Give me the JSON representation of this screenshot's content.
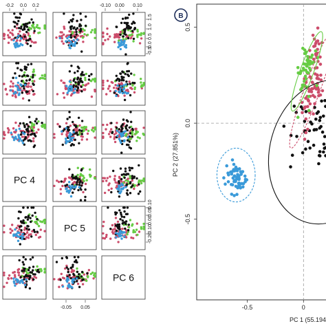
{
  "colors": {
    "black": "#111111",
    "red": "#cc4d6b",
    "green": "#66cc44",
    "blue": "#3a9ad9"
  },
  "chart_data": [
    {
      "type": "scatter",
      "kind": "pairs-matrix",
      "diagonal_labels": [
        "PC 4",
        "PC 5",
        "PC 6"
      ],
      "top_ticks": {
        "col1": [
          "-0.2",
          "0.0",
          "0.2"
        ],
        "col3": [
          "-0.10",
          "0.00",
          "0.10"
        ]
      },
      "right_ticks": {
        "row1": [
          "1.5",
          "1.0",
          "0.5",
          "0.0",
          "-0.5"
        ],
        "row5": [
          "0.10",
          "0.05",
          "0.00",
          "-0.10",
          "-0.20"
        ]
      },
      "bottom_ticks": {
        "col2": [
          "-0.05",
          "0.05"
        ]
      },
      "groups": [
        "black",
        "red",
        "green",
        "blue"
      ]
    },
    {
      "type": "scatter",
      "panel_label": "B",
      "xlabel": "PC 1 (55.194",
      "ylabel": "PC 2 (27.851%)",
      "xticks": [
        "-0.5",
        "0"
      ],
      "yticks": [
        "0.5",
        "0.0",
        "-0.5"
      ],
      "xlim": [
        -0.95,
        0.2
      ],
      "ylim": [
        -0.92,
        0.62
      ],
      "series": [
        {
          "group": "black",
          "n": 70,
          "center": [
            0.15,
            -0.05
          ],
          "spread": [
            0.22,
            0.18
          ]
        },
        {
          "group": "red",
          "n": 75,
          "center": [
            0.08,
            0.22
          ],
          "spread": [
            0.06,
            0.2
          ]
        },
        {
          "group": "green",
          "n": 50,
          "center": [
            0.02,
            0.28
          ],
          "spread": [
            0.06,
            0.14
          ]
        },
        {
          "group": "blue",
          "n": 60,
          "center": [
            -0.6,
            -0.28
          ],
          "spread": [
            0.08,
            0.07
          ]
        }
      ],
      "ellipses": [
        {
          "group": "black",
          "center": [
            0.2,
            -0.15
          ],
          "radii": [
            0.5,
            0.38
          ],
          "rotation": 15,
          "dashed": false
        },
        {
          "group": "red",
          "center": [
            0.08,
            0.18
          ],
          "radii": [
            0.07,
            0.33
          ],
          "rotation": 20,
          "dashed": true
        },
        {
          "group": "green",
          "center": [
            0.03,
            0.27
          ],
          "radii": [
            0.06,
            0.22
          ],
          "rotation": 20,
          "dashed": false
        },
        {
          "group": "blue",
          "center": [
            -0.6,
            -0.27
          ],
          "radii": [
            0.17,
            0.14
          ],
          "rotation": 0,
          "dashed": true
        }
      ]
    }
  ]
}
